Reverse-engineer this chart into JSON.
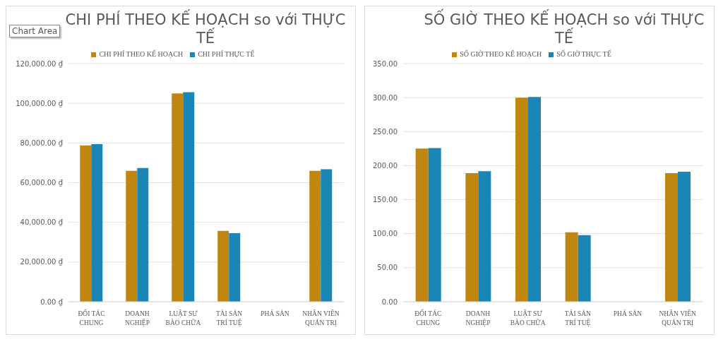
{
  "chart_data": [
    {
      "type": "bar",
      "title": "CHI PHÍ THEO KẾ HOẠCH so với THỰC TẾ",
      "annotations": [
        "Chart Area"
      ],
      "categories": [
        "ĐỐI TÁC CHUNG",
        "DOANH NGHIỆP",
        "LUẬT SƯ BÀO CHỮA",
        "TÀI SẢN TRÍ TUỆ",
        "PHÁ SẢN",
        "NHÂN VIÊN QUẢN TRỊ"
      ],
      "series": [
        {
          "name": "CHI PHÍ THEO KẾ HOẠCH",
          "color": "#bf870f",
          "values": [
            78800,
            66000,
            105000,
            35700,
            0,
            66000
          ]
        },
        {
          "name": "CHI PHÍ THỰC TẾ",
          "color": "#1a86b6",
          "values": [
            79400,
            67400,
            105600,
            34500,
            0,
            66800
          ]
        }
      ],
      "ylim": [
        0,
        120000
      ],
      "yticks": [
        {
          "value": 0,
          "label": "0.00 ₫"
        },
        {
          "value": 20000,
          "label": "20,000.00 ₫"
        },
        {
          "value": 40000,
          "label": "40,000.00 ₫"
        },
        {
          "value": 60000,
          "label": "60,000.00 ₫"
        },
        {
          "value": 80000,
          "label": "80,000.00 ₫"
        },
        {
          "value": 100000,
          "label": "100,000.00 ₫"
        },
        {
          "value": 120000,
          "label": "120,000.00 ₫"
        }
      ],
      "grid": "y",
      "legend": "top"
    },
    {
      "type": "bar",
      "title": "SỐ GIỜ THEO KẾ HOẠCH so với THỰC TẾ",
      "categories": [
        "ĐỐI TÁC CHUNG",
        "DOANH NGHIỆP",
        "LUẬT SƯ BÀO CHỮA",
        "TÀI SẢN TRÍ TUỆ",
        "PHÁ SẢN",
        "NHÂN VIÊN QUẢN TRỊ"
      ],
      "series": [
        {
          "name": "SỐ GIỜ THEO KẾ HOẠCH",
          "color": "#bf870f",
          "values": [
            225,
            189,
            300,
            102,
            0,
            189
          ]
        },
        {
          "name": "SỐ GIỜ THỰC TẾ",
          "color": "#1a86b6",
          "values": [
            226,
            192,
            301,
            98,
            0,
            191
          ]
        }
      ],
      "ylim": [
        0,
        350
      ],
      "yticks": [
        {
          "value": 0,
          "label": "0.00"
        },
        {
          "value": 50,
          "label": "50.00"
        },
        {
          "value": 100,
          "label": "100.00"
        },
        {
          "value": 150,
          "label": "150.00"
        },
        {
          "value": 200,
          "label": "200.00"
        },
        {
          "value": 250,
          "label": "250.00"
        },
        {
          "value": 300,
          "label": "300.00"
        },
        {
          "value": 350,
          "label": "350.00"
        }
      ],
      "grid": "y",
      "legend": "top"
    }
  ]
}
